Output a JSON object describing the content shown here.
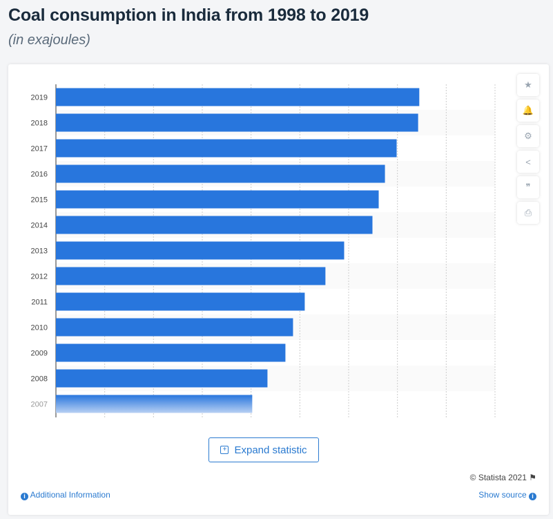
{
  "header": {
    "title": "Coal consumption in India from 1998 to 2019",
    "subtitle": "(in exajoules)"
  },
  "sidebar": [
    {
      "icon": "star-icon",
      "glyph": "★"
    },
    {
      "icon": "bell-icon",
      "glyph": "🔔"
    },
    {
      "icon": "gear-icon",
      "glyph": "⚙"
    },
    {
      "icon": "share-icon",
      "glyph": "<"
    },
    {
      "icon": "quote-icon",
      "glyph": "❞"
    },
    {
      "icon": "print-icon",
      "glyph": "⎙"
    }
  ],
  "footer": {
    "expand_label": "Expand statistic",
    "copyright": "© Statista 2021",
    "additional_info": "Additional Information",
    "show_source": "Show source"
  },
  "colors": {
    "bar": "#2876dd",
    "link": "#2a7ad0"
  },
  "chart_data": {
    "type": "bar",
    "orientation": "horizontal",
    "title": "Coal consumption in India from 1998 to 2019",
    "subtitle": "(in exajoules)",
    "categories": [
      "2019",
      "2018",
      "2017",
      "2016",
      "2015",
      "2014",
      "2013",
      "2012",
      "2011",
      "2010",
      "2009",
      "2008",
      "2007"
    ],
    "values": [
      18.62,
      18.56,
      17.46,
      16.86,
      16.54,
      16.22,
      14.77,
      13.81,
      12.75,
      12.15,
      11.76,
      10.84,
      10.06
    ],
    "xlim": [
      0,
      22.5
    ],
    "grid_step": 2.5,
    "grid": true
  }
}
